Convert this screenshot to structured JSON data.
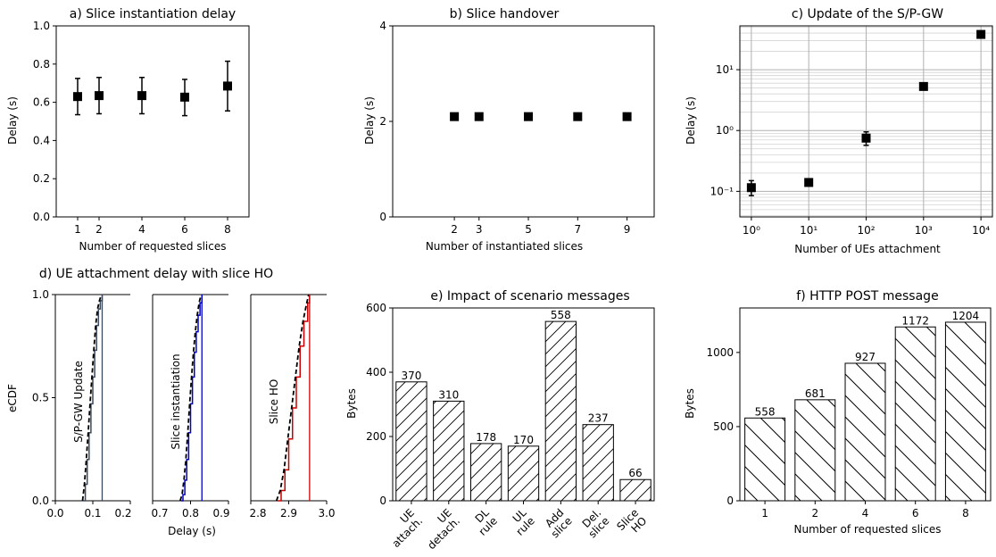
{
  "chart_data": [
    {
      "id": "a",
      "type": "scatter",
      "title": "a) Slice instantiation delay",
      "xlabel": "Number of requested slices",
      "ylabel": "Delay (s)",
      "ylim": [
        0,
        1.0
      ],
      "yticks": [
        "0.0",
        "0.2",
        "0.4",
        "0.6",
        "0.8",
        "1.0"
      ],
      "xticks": [
        "1",
        "2",
        "4",
        "6",
        "8"
      ],
      "x": [
        1,
        2,
        4,
        6,
        8
      ],
      "y": [
        0.63,
        0.635,
        0.635,
        0.627,
        0.685
      ],
      "err_low": [
        0.535,
        0.54,
        0.54,
        0.53,
        0.555
      ],
      "err_high": [
        0.725,
        0.73,
        0.73,
        0.72,
        0.815
      ]
    },
    {
      "id": "b",
      "type": "scatter",
      "title": "b) Slice handover",
      "xlabel": "Number of instantiated slices",
      "ylabel": "Delay (s)",
      "ylim": [
        0,
        4
      ],
      "yticks": [
        "0",
        "2",
        "4"
      ],
      "xticks": [
        "2",
        "3",
        "5",
        "7",
        "9"
      ],
      "x": [
        2,
        3,
        5,
        7,
        9
      ],
      "y": [
        2.1,
        2.1,
        2.1,
        2.1,
        2.1
      ]
    },
    {
      "id": "c",
      "type": "scatter",
      "title": "c) Update of the S/P-GW",
      "xlabel": "Number of UEs attachment",
      "ylabel": "Delay (s)",
      "yscale": "log",
      "xscale": "log",
      "grid": true,
      "yticks": [
        "10⁻¹",
        "10⁰",
        "10¹"
      ],
      "xticks": [
        "10⁰",
        "10¹",
        "10²",
        "10³",
        "10⁴"
      ],
      "x": [
        1,
        10,
        100,
        1000,
        10000
      ],
      "y": [
        0.115,
        0.14,
        0.75,
        5.3,
        38
      ],
      "err_low": [
        0.085,
        0.14,
        0.57,
        5.3,
        38
      ],
      "err_high": [
        0.15,
        0.14,
        0.95,
        5.3,
        38
      ]
    },
    {
      "id": "d",
      "type": "line",
      "title": "d) UE attachment delay with slice HO",
      "xlabel": "Delay (s)",
      "ylabel": "eCDF",
      "yticks": [
        "0.0",
        "0.5",
        "1.0"
      ],
      "panels": [
        {
          "label": "S/P-GW Update",
          "xlim": [
            0.0,
            0.2
          ],
          "xticks": [
            "0.0",
            "0.1",
            "0.2"
          ],
          "color": "#3a4a5c",
          "x": [
            0.075,
            0.08,
            0.085,
            0.09,
            0.095,
            0.1,
            0.105,
            0.11,
            0.115,
            0.12,
            0.125
          ],
          "y": [
            0.0,
            0.08,
            0.2,
            0.33,
            0.47,
            0.6,
            0.73,
            0.85,
            0.93,
            0.97,
            1.0
          ],
          "vline": 0.125
        },
        {
          "label": "Slice instantiation",
          "xlim": [
            0.7,
            0.9
          ],
          "xticks": [
            "0.7",
            "0.8",
            "0.9"
          ],
          "color": "#0000cc",
          "x": [
            0.775,
            0.78,
            0.785,
            0.79,
            0.795,
            0.8,
            0.805,
            0.81,
            0.815,
            0.82,
            0.825,
            0.83
          ],
          "y": [
            0.0,
            0.03,
            0.1,
            0.2,
            0.33,
            0.47,
            0.6,
            0.72,
            0.82,
            0.9,
            0.96,
            1.0
          ],
          "vline": 0.83
        },
        {
          "label": "Slice HO",
          "xlim": [
            2.8,
            3.0
          ],
          "xticks": [
            "2.8",
            "2.9",
            "3.0"
          ],
          "color": "#cc0000",
          "x": [
            2.87,
            2.88,
            2.89,
            2.9,
            2.91,
            2.92,
            2.93,
            2.94,
            2.95,
            2.955
          ],
          "y": [
            0.0,
            0.05,
            0.15,
            0.3,
            0.45,
            0.6,
            0.75,
            0.87,
            0.96,
            1.0
          ],
          "vline": 2.955
        }
      ]
    },
    {
      "id": "e",
      "type": "bar",
      "title": "e) Impact of scenario messages",
      "ylabel": "Bytes",
      "ylim": [
        0,
        600
      ],
      "yticks": [
        "0",
        "200",
        "400",
        "600"
      ],
      "categories": [
        "UE attach.",
        "UE detach.",
        "DL rule",
        "UL rule",
        "Add slice",
        "Del. slice",
        "Slice HO"
      ],
      "values": [
        370,
        310,
        178,
        170,
        558,
        237,
        66
      ],
      "hatch": "forward"
    },
    {
      "id": "f",
      "type": "bar",
      "title": "f) HTTP POST message",
      "xlabel": "Number of requested slices",
      "ylabel": "Bytes",
      "ylim": [
        0,
        1300
      ],
      "yticks": [
        "0",
        "500",
        "1000"
      ],
      "categories": [
        "1",
        "2",
        "4",
        "6",
        "8"
      ],
      "values": [
        558,
        681,
        927,
        1172,
        1204
      ],
      "hatch": "back"
    }
  ]
}
